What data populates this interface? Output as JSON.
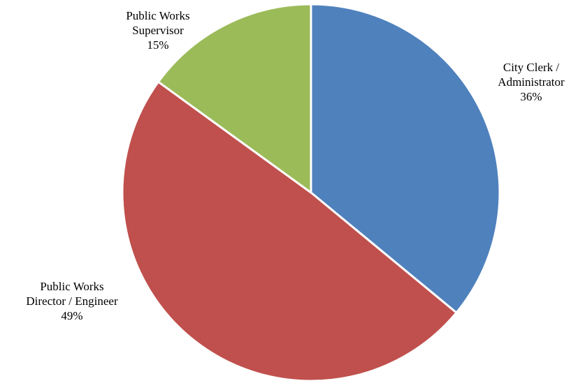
{
  "chart_data": {
    "type": "pie",
    "title": "",
    "slices": [
      {
        "label_lines": [
          "City Clerk /",
          "Administrator"
        ],
        "percent_label": "36%",
        "value": 36,
        "color": "#4F81BD"
      },
      {
        "label_lines": [
          "Public Works",
          "Director / Engineer"
        ],
        "percent_label": "49%",
        "value": 49,
        "color": "#C0504D"
      },
      {
        "label_lines": [
          "Public Works",
          "Supervisor"
        ],
        "percent_label": "15%",
        "value": 15,
        "color": "#9BBB59"
      }
    ],
    "legend": "none"
  }
}
